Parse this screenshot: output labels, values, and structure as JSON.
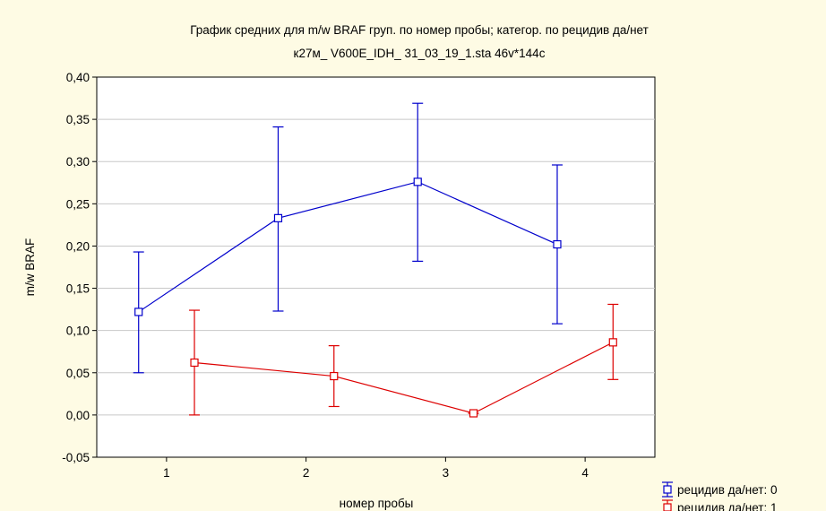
{
  "chart_data": {
    "type": "line",
    "title": "График средних для m/w  BRAF груп. по номер пробы; категор. по рецидив да/нет",
    "subtitle": "к27м_ V600E_IDH_ 31_03_19_1.sta 46v*144c",
    "xlabel": "номер пробы",
    "ylabel": "m/w BRAF",
    "categories": [
      "1",
      "2",
      "3",
      "4"
    ],
    "ylim": [
      -0.05,
      0.4
    ],
    "yticks": [
      -0.05,
      0.0,
      0.05,
      0.1,
      0.15,
      0.2,
      0.25,
      0.3,
      0.35,
      0.4
    ],
    "ytick_labels": [
      "-0,05",
      "0,00",
      "0,05",
      "0,10",
      "0,15",
      "0,20",
      "0,25",
      "0,30",
      "0,35",
      "0,40"
    ],
    "grid": true,
    "legend_position": "bottom-right",
    "series": [
      {
        "name": "рецидив да/нет: 0",
        "color": "#0000cc",
        "offset": -0.2,
        "values": [
          0.122,
          0.233,
          0.276,
          0.202
        ],
        "lower": [
          0.05,
          0.123,
          0.182,
          0.108
        ],
        "upper": [
          0.193,
          0.341,
          0.369,
          0.296
        ]
      },
      {
        "name": "рецидив да/нет: 1",
        "color": "#dd0000",
        "offset": 0.2,
        "values": [
          0.062,
          0.046,
          0.002,
          0.086
        ],
        "lower": [
          0.0,
          0.01,
          0.002,
          0.042
        ],
        "upper": [
          0.124,
          0.082,
          0.002,
          0.131
        ]
      }
    ]
  }
}
